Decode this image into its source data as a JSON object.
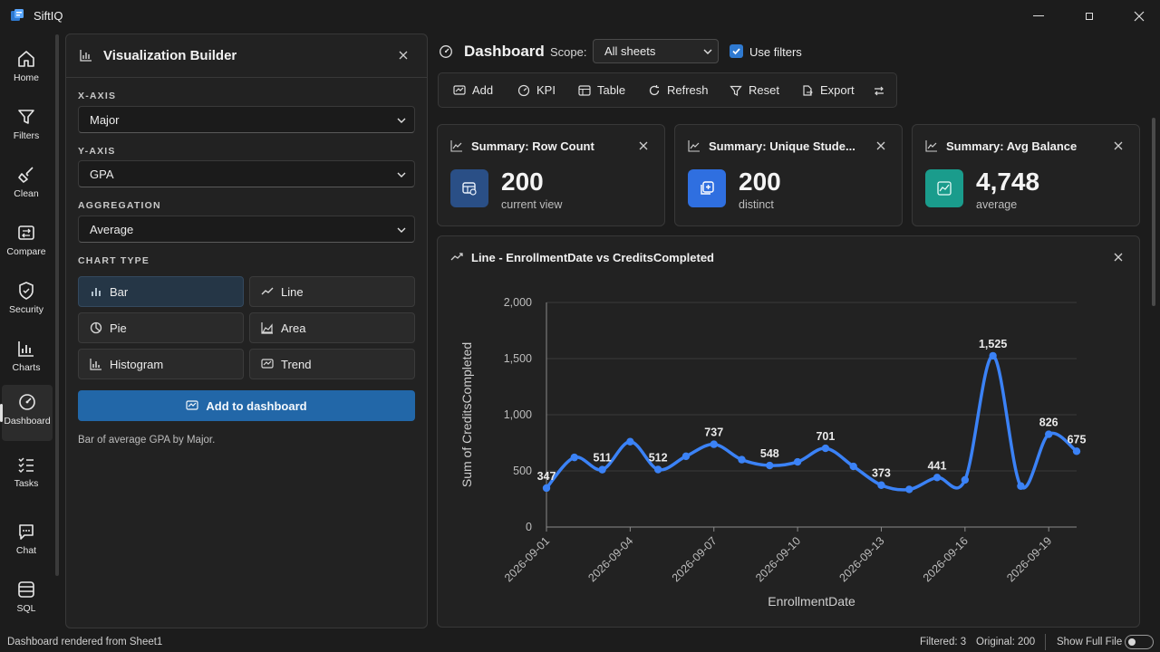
{
  "app": {
    "title": "SiftIQ"
  },
  "nav": {
    "items": [
      {
        "label": "Home",
        "icon": "home-icon"
      },
      {
        "label": "Filters",
        "icon": "filter-icon"
      },
      {
        "label": "Clean",
        "icon": "broom-icon"
      },
      {
        "label": "Compare",
        "icon": "compare-icon"
      },
      {
        "label": "Security",
        "icon": "shield-icon"
      },
      {
        "label": "Charts",
        "icon": "bar-chart-icon"
      },
      {
        "label": "Dashboard",
        "icon": "gauge-icon",
        "active": true
      },
      {
        "label": "Tasks",
        "icon": "tasks-icon"
      },
      {
        "label": "Chat",
        "icon": "chat-icon"
      },
      {
        "label": "SQL",
        "icon": "database-icon"
      }
    ]
  },
  "builder": {
    "title": "Visualization Builder",
    "x_axis": {
      "label": "X-AXIS",
      "value": "Major"
    },
    "y_axis": {
      "label": "Y-AXIS",
      "value": "GPA"
    },
    "aggregation": {
      "label": "AGGREGATION",
      "value": "Average"
    },
    "chart_type": {
      "label": "CHART TYPE",
      "options": [
        "Bar",
        "Line",
        "Pie",
        "Area",
        "Histogram",
        "Trend"
      ],
      "selected": "Bar"
    },
    "add_button": "Add to dashboard",
    "description": "Bar of average GPA by Major."
  },
  "dashboard": {
    "title": "Dashboard",
    "scope_label": "Scope:",
    "scope_value": "All sheets",
    "use_filters_label": "Use filters",
    "use_filters_checked": true,
    "toolbar": {
      "add": "Add",
      "kpi": "KPI",
      "table": "Table",
      "refresh": "Refresh",
      "reset": "Reset",
      "export": "Export"
    },
    "cards": [
      {
        "title": "Summary: Row Count",
        "value": "200",
        "sub": "current view",
        "tile_color": "#2a4f86"
      },
      {
        "title": "Summary: Unique Stude...",
        "value": "200",
        "sub": "distinct",
        "tile_color": "#2f6fe0"
      },
      {
        "title": "Summary: Avg Balance",
        "value": "4,748",
        "sub": "average",
        "tile_color": "#1a9c8c"
      }
    ]
  },
  "chart_data": {
    "type": "line",
    "title": "Line - EnrollmentDate vs CreditsCompleted",
    "xlabel": "EnrollmentDate",
    "ylabel": "Sum of CreditsCompleted",
    "x": [
      "2026-09-01",
      "2026-09-02",
      "2026-09-03",
      "2026-09-04",
      "2026-09-05",
      "2026-09-06",
      "2026-09-07",
      "2026-09-08",
      "2026-09-09",
      "2026-09-10",
      "2026-09-11",
      "2026-09-12",
      "2026-09-13",
      "2026-09-14",
      "2026-09-15",
      "2026-09-16",
      "2026-09-17",
      "2026-09-18",
      "2026-09-19",
      "2026-09-20"
    ],
    "values": [
      347,
      620,
      511,
      760,
      512,
      630,
      737,
      600,
      548,
      580,
      701,
      540,
      373,
      335,
      441,
      420,
      1525,
      365,
      826,
      675
    ],
    "labeled_points": [
      0,
      2,
      4,
      6,
      8,
      10,
      12,
      14,
      16,
      18,
      19
    ],
    "x_tick_labels": [
      "2026-09-01",
      "2026-09-04",
      "2026-09-07",
      "2026-09-10",
      "2026-09-13",
      "2026-09-16",
      "2026-09-19"
    ],
    "x_tick_index": [
      0,
      3,
      6,
      9,
      12,
      15,
      18
    ],
    "y_ticks": [
      0,
      500,
      1000,
      1500,
      2000
    ],
    "y_tick_labels": [
      "0",
      "500",
      "1,000",
      "1,500",
      "2,000"
    ],
    "ylim": [
      0,
      2000
    ],
    "grid": true,
    "line_color": "#3b82f6"
  },
  "status": {
    "left": "Dashboard rendered from Sheet1",
    "filtered": "Filtered: 3",
    "original": "Original: 200",
    "show_full_file": "Show Full File"
  }
}
